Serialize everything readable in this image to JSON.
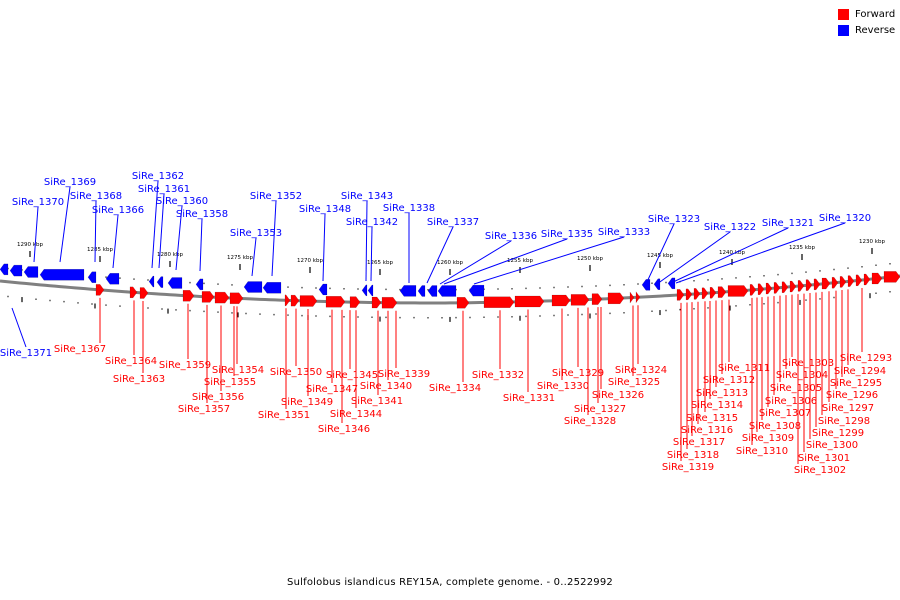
{
  "legend": {
    "forward": {
      "label": "Forward",
      "color": "#ff0000"
    },
    "reverse": {
      "label": "Reverse",
      "color": "#0000ff"
    }
  },
  "caption": "Sulfolobus islandicus REY15A, complete genome. - 0..2522992",
  "colors": {
    "forward": "#ff0000",
    "reverse": "#0000ff",
    "backbone": "#808080"
  },
  "scale_labels": [
    "1290 kbp",
    "1285 kbp",
    "1280 kbp",
    "1275 kbp",
    "1270 kbp",
    "1265 kbp",
    "1260 kbp",
    "1255 kbp",
    "1250 kbp",
    "1245 kbp",
    "1240 kbp",
    "1235 kbp",
    "1230 kbp"
  ],
  "reverse_genes": [
    "SiRe_1371",
    "SiRe_1370",
    "SiRe_1369",
    "SiRe_1368",
    "SiRe_1366",
    "SiRe_1362",
    "SiRe_1361",
    "SiRe_1360",
    "SiRe_1358",
    "SiRe_1353",
    "SiRe_1352",
    "SiRe_1348",
    "SiRe_1343",
    "SiRe_1342",
    "SiRe_1338",
    "SiRe_1337",
    "SiRe_1336",
    "SiRe_1335",
    "SiRe_1333",
    "SiRe_1323",
    "SiRe_1322",
    "SiRe_1321",
    "SiRe_1320"
  ],
  "forward_genes": [
    "SiRe_1367",
    "SiRe_1364",
    "SiRe_1363",
    "SiRe_1359",
    "SiRe_1357",
    "SiRe_1356",
    "SiRe_1355",
    "SiRe_1354",
    "SiRe_1351",
    "SiRe_1350",
    "SiRe_1349",
    "SiRe_1347",
    "SiRe_1346",
    "SiRe_1345",
    "SiRe_1344",
    "SiRe_1341",
    "SiRe_1340",
    "SiRe_1339",
    "SiRe_1334",
    "SiRe_1332",
    "SiRe_1331",
    "SiRe_1330",
    "SiRe_1329",
    "SiRe_1328",
    "SiRe_1327",
    "SiRe_1326",
    "SiRe_1325",
    "SiRe_1324",
    "SiRe_1319",
    "SiRe_1318",
    "SiRe_1317",
    "SiRe_1316",
    "SiRe_1315",
    "SiRe_1314",
    "SiRe_1313",
    "SiRe_1312",
    "SiRe_1311",
    "SiRe_1310",
    "SiRe_1309",
    "SiRe_1308",
    "SiRe_1307",
    "SiRe_1306",
    "SiRe_1305",
    "SiRe_1304",
    "SiRe_1303",
    "SiRe_1302",
    "SiRe_1301",
    "SiRe_1300",
    "SiRe_1299",
    "SiRe_1298",
    "SiRe_1297",
    "SiRe_1296",
    "SiRe_1295",
    "SiRe_1294",
    "SiRe_1293"
  ]
}
